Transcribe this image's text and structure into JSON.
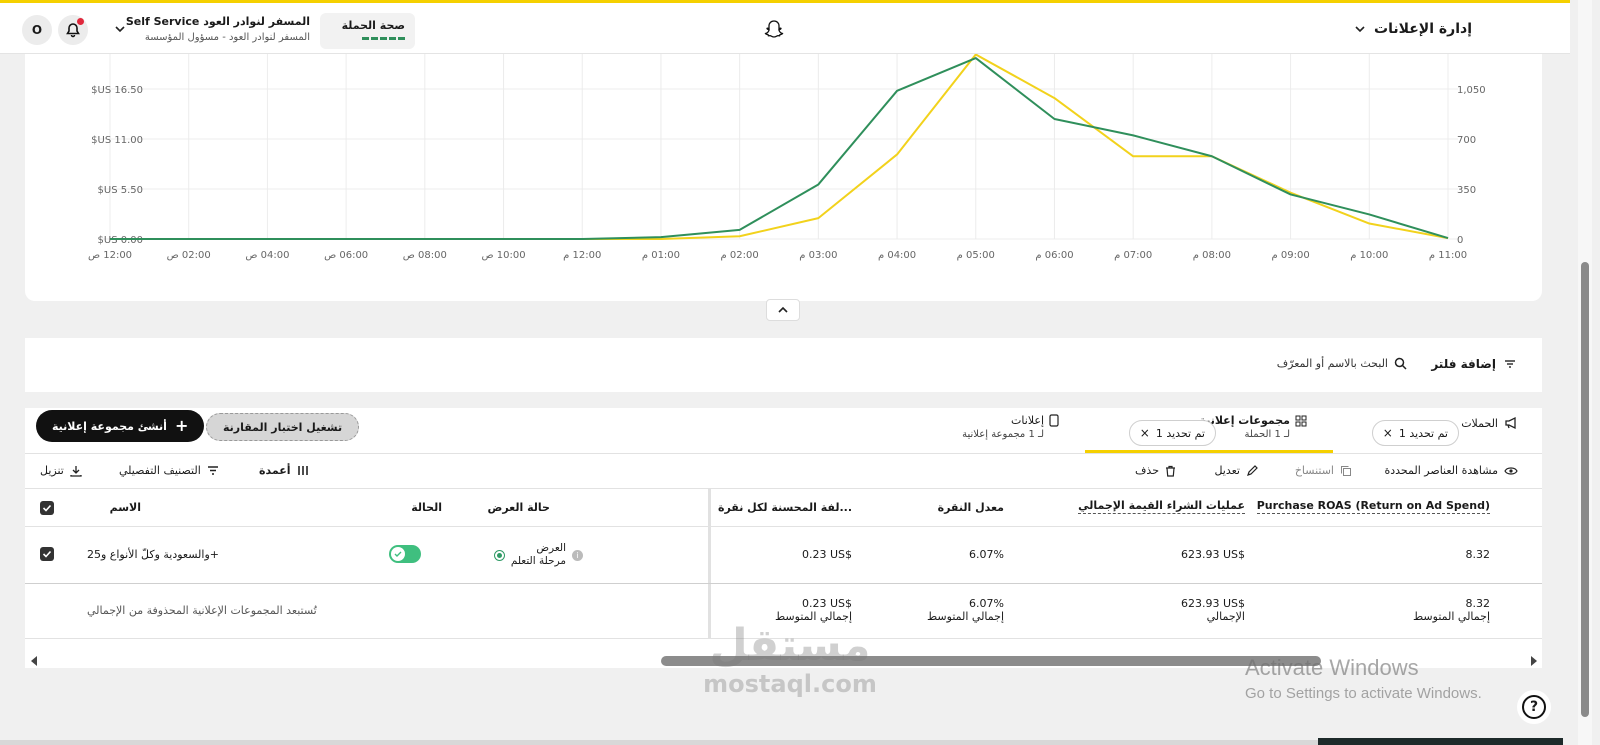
{
  "header": {
    "manager_label": "إدارة الإعلانات",
    "campaign_health_label": "صحة الحملة",
    "account_name": "المسفر لنوادر العود",
    "account_badge": "Self Service",
    "account_role": "المسفر لنوادر العود - مسؤول المؤسسة",
    "avatar_letter": "O"
  },
  "chart_data": {
    "type": "line",
    "x": [
      "12:00 ص",
      "02:00 ص",
      "04:00 ص",
      "06:00 ص",
      "08:00 ص",
      "10:00 ص",
      "12:00 م",
      "01:00 م",
      "02:00 م",
      "03:00 م",
      "04:00 م",
      "05:00 م",
      "06:00 م",
      "07:00 م",
      "08:00 م",
      "09:00 م",
      "10:00 م",
      "11:00 م"
    ],
    "left_ticks": [
      "$US 0.00",
      "$US 5.50",
      "$US 11.00",
      "$US 16.50"
    ],
    "right_ticks": [
      "0",
      "350",
      "700",
      "1,050"
    ],
    "ylim_left": [
      0,
      22
    ],
    "ylim_right": [
      0,
      1400
    ],
    "series": [
      {
        "color": "#f2d21c",
        "values": [
          0,
          0,
          0,
          0,
          0,
          0,
          0,
          0,
          0.3,
          2.3,
          9.3,
          20.3,
          15.5,
          9.1,
          9.1,
          5.1,
          1.7,
          0.1
        ]
      },
      {
        "color": "#2f8f5b",
        "values": [
          0,
          0,
          0,
          0,
          0,
          0,
          0,
          0.2,
          1.0,
          6.0,
          16.3,
          19.9,
          13.2,
          11.4,
          9.1,
          4.9,
          2.7,
          0.1
        ]
      }
    ],
    "grid": true
  },
  "collapse_icon": "chevron-up-icon",
  "filter": {
    "add_filter": "إضافة فلتر",
    "search_placeholder": "البحث بالاسم أو المعرّف"
  },
  "tabs": [
    {
      "label": "الحملات",
      "pill": "تم تحديد 1",
      "icon": "megaphone-icon"
    },
    {
      "label": "مجموعات إعلانية",
      "sub": "لـ 1 الحملة",
      "pill": "تم تحديد 1",
      "icon": "grid-icon"
    },
    {
      "label": "إعلانات",
      "sub": "لـ 1 مجموعة إعلانية",
      "icon": "phone-icon"
    }
  ],
  "compare_button": "تشغيل اختبار المقارنة",
  "create_button": "أنشئ مجموعة إعلانية",
  "toolbar": {
    "view_selected": "مشاهدة العناصر المحددة",
    "duplicate": "استنساخ",
    "edit": "تعديل",
    "delete": "حذف",
    "columns": "أعمدة",
    "breakdown": "التصنيف التفصيلي",
    "download": "تنزيل"
  },
  "table": {
    "headers": {
      "roas": "Purchase ROAS (Return on Ad Spend)",
      "purchase_value": "عمليات الشراء القيمة الإجمالي",
      "ctr": "معدل النقرة",
      "cpc": "...لفة المحسنة لكل نقرة",
      "delivery": "حالة العرض",
      "status": "الحالة",
      "name": "الاسم"
    },
    "row": {
      "roas": "8.32",
      "purchase_value": "623.93 US$",
      "ctr": "6.07%",
      "cpc": "0.23 US$",
      "delivery_line1": "العرض",
      "delivery_line2": "مرحلة التعلم",
      "name": "+والسعودية وكلّ الأنواع و25"
    },
    "totals": {
      "roas": "8.32",
      "roas_label": "إجمالي المتوسط",
      "purchase_value": "623.93 US$",
      "purchase_label": "الإجمالي",
      "ctr": "6.07%",
      "ctr_label": "إجمالي المتوسط",
      "cpc": "0.23 US$",
      "cpc_label": "إجمالي المتوسط",
      "note": "تُستبعد المجموعات الإعلانية المحذوفة من الإجمالي"
    }
  },
  "watermark": {
    "title": "Activate Windows",
    "subtitle": "Go to Settings to activate Windows.",
    "brand_ar": "مستقل",
    "brand": "mostaql.com"
  }
}
